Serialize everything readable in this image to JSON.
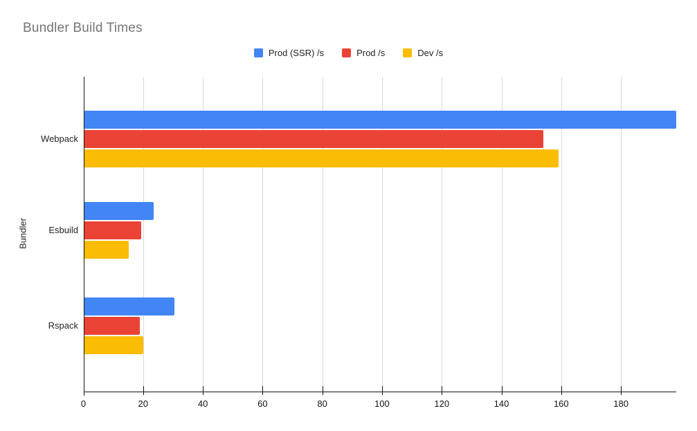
{
  "title": "Bundler Build Times",
  "chart_data": {
    "type": "bar",
    "orientation": "horizontal",
    "title": "Bundler Build Times",
    "categories": [
      "Webpack",
      "Esbuild",
      "Rspack"
    ],
    "series": [
      {
        "name": "Prod (SSR) /s",
        "color": "#4285F4",
        "values": [
          198.4,
          23.6,
          30.4
        ]
      },
      {
        "name": "Prod /s",
        "color": "#EA4335",
        "values": [
          154.1,
          19.4,
          19.0
        ]
      },
      {
        "name": "Dev /s",
        "color": "#FBBC04",
        "values": [
          159.1,
          15.1,
          20.1
        ]
      }
    ],
    "xlabel": "",
    "ylabel": "Bundler",
    "xlim": [
      0,
      198.4
    ],
    "x_ticks": [
      0,
      20,
      40,
      60,
      80,
      100,
      120,
      140,
      160,
      180
    ],
    "grid": true,
    "legend_position": "top-center",
    "colors": {
      "background": "#ffffff",
      "title_text": "#757575",
      "axis_text": "#222222",
      "gridline": "#d9d9d9",
      "axis_line": "#111111"
    }
  }
}
